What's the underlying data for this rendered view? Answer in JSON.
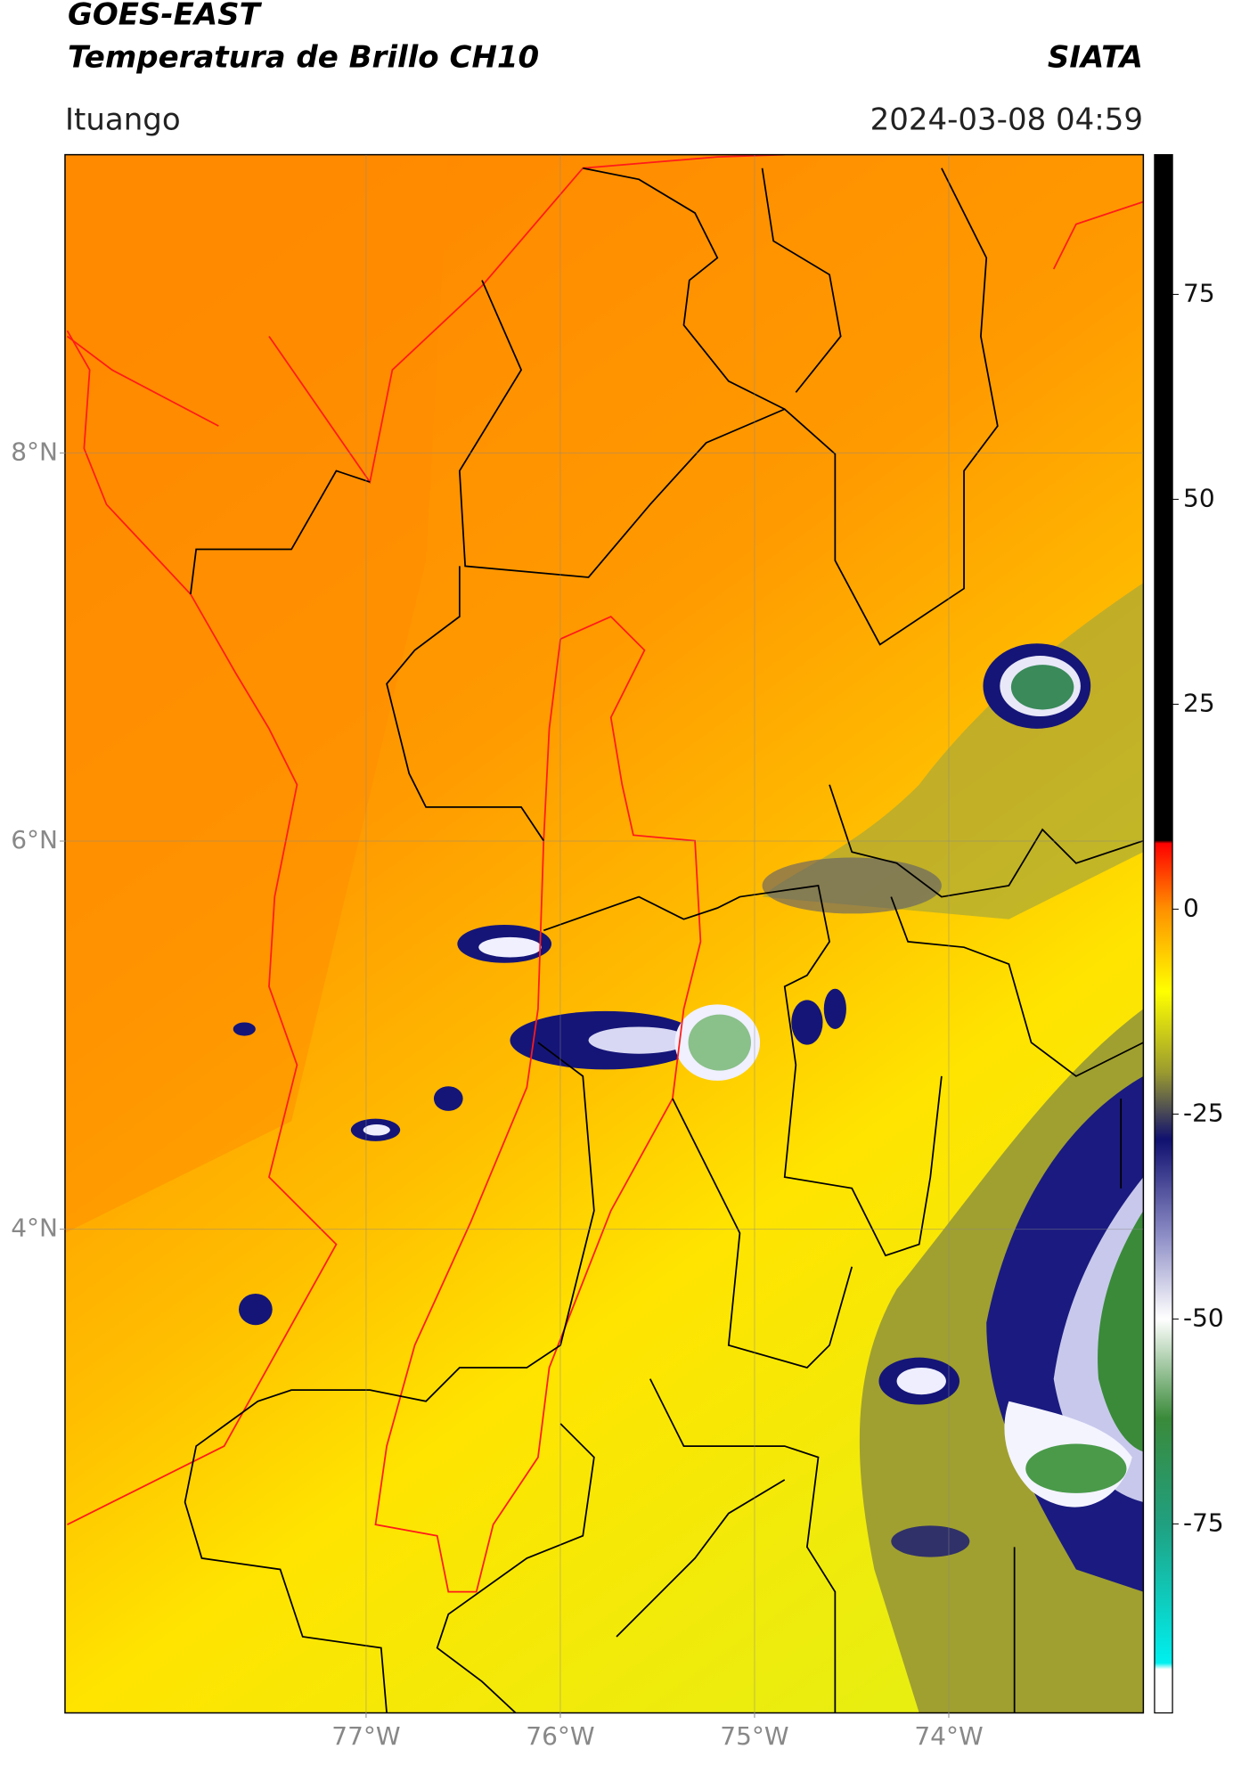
{
  "header": {
    "title": "GOES-EAST",
    "subtitle": "Temperatura de Brillo CH10",
    "source": "SIATA",
    "location": "Ituango",
    "datetime": "2024-03-08 04:59"
  },
  "map": {
    "xlim": [
      -78.55,
      -73.0
    ],
    "ylim": [
      1.51,
      9.535
    ],
    "xticks": [
      {
        "value": -77,
        "label": "77°W"
      },
      {
        "value": -76,
        "label": "76°W"
      },
      {
        "value": -75,
        "label": "75°W"
      },
      {
        "value": -74,
        "label": "74°W"
      }
    ],
    "yticks": [
      {
        "value": 4,
        "label": "4°N"
      },
      {
        "value": 6,
        "label": "6°N"
      },
      {
        "value": 8,
        "label": "8°N"
      }
    ],
    "grid": true
  },
  "colorbar": {
    "lim": [
      -98,
      92
    ],
    "ticks": [
      75,
      50,
      25,
      0,
      -25,
      -50,
      -75
    ]
  }
}
